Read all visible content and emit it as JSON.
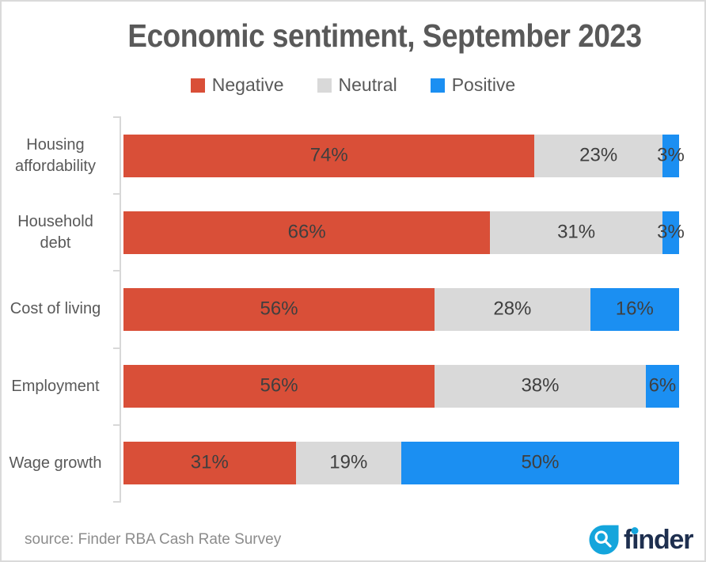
{
  "title": "Economic sentiment, September 2023",
  "chart_data": {
    "type": "bar",
    "variant": "horizontal-stacked",
    "title": "Economic sentiment, September 2023",
    "categories": [
      "Housing affordability",
      "Household debt",
      "Cost of living",
      "Employment",
      "Wage growth"
    ],
    "series": [
      {
        "name": "Negative",
        "color": "#D94F38",
        "values": [
          74,
          66,
          56,
          56,
          31
        ]
      },
      {
        "name": "Neutral",
        "color": "#D9D9D9",
        "values": [
          23,
          31,
          28,
          38,
          19
        ]
      },
      {
        "name": "Positive",
        "color": "#1B8FF2",
        "values": [
          3,
          3,
          16,
          6,
          50
        ]
      }
    ],
    "value_suffix": "%",
    "xlim": [
      0,
      100
    ],
    "xlabel": "",
    "ylabel": "",
    "grid": false,
    "legend_position": "top",
    "data_labels": "inside-center"
  },
  "source": "source: Finder RBA Cash Rate Survey",
  "logo": {
    "text": "finder",
    "icon": "magnifying-glass-drop-icon"
  },
  "colors": {
    "negative": "#D94F38",
    "neutral": "#D9D9D9",
    "positive": "#1B8FF2",
    "title_text": "#595959",
    "category_text": "#595959",
    "data_label_text": "#3F3F3F",
    "axis": "#D8D8D8",
    "source_text": "#8C8C8C",
    "logo_navy": "#1E2F4F",
    "logo_blue": "#14A5DC",
    "frame_border": "#DADADA"
  }
}
